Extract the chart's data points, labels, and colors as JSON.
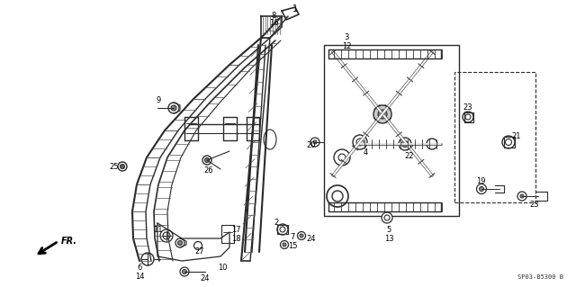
{
  "background_color": "#ffffff",
  "line_color": "#2a2a2a",
  "diagram_code": "SP03-B5300 B",
  "figsize": [
    6.4,
    3.19
  ],
  "dpi": 100,
  "xlim": [
    0,
    640
  ],
  "ylim": [
    0,
    319
  ]
}
